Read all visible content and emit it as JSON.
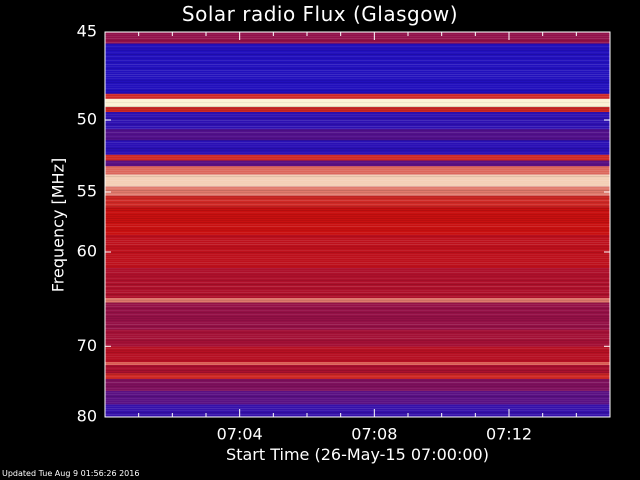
{
  "chart_data": {
    "type": "heatmap",
    "title": "Solar radio Flux (Glasgow)",
    "xlabel": "Start Time (26-May-15 07:00:00)",
    "ylabel": "Frequency [MHz]",
    "x_tick_labels": [
      "07:04",
      "07:08",
      "07:12"
    ],
    "x_ticks_minutes": [
      4,
      8,
      12
    ],
    "xlim_minutes": [
      0,
      15
    ],
    "y_tick_labels": [
      "45",
      "50",
      "55",
      "60",
      "70",
      "80"
    ],
    "y_ticks_mhz": [
      45,
      50,
      55,
      60,
      70,
      80
    ],
    "ylim_mhz": [
      45,
      80
    ],
    "y_scale": "reciprocal",
    "colormap": "blue-red-yellow-white",
    "colors": {
      "background": "#000000",
      "axes": "#ffffff",
      "low": "#1010d0",
      "mid": "#c81010",
      "high": "#ffffe0"
    },
    "bands": [
      {
        "from": 45.0,
        "to": 45.6,
        "level": 0.35
      },
      {
        "from": 45.6,
        "to": 48.4,
        "level": 0.05
      },
      {
        "from": 48.4,
        "to": 48.7,
        "level": 0.55
      },
      {
        "from": 48.7,
        "to": 49.2,
        "level": 0.97
      },
      {
        "from": 49.2,
        "to": 49.5,
        "level": 0.55
      },
      {
        "from": 49.5,
        "to": 50.6,
        "level": 0.08
      },
      {
        "from": 50.6,
        "to": 51.3,
        "level": 0.18
      },
      {
        "from": 51.3,
        "to": 52.3,
        "level": 0.07
      },
      {
        "from": 52.3,
        "to": 52.7,
        "level": 0.55
      },
      {
        "from": 52.7,
        "to": 53.1,
        "level": 0.2
      },
      {
        "from": 53.1,
        "to": 53.7,
        "level": 0.68
      },
      {
        "from": 53.7,
        "to": 54.6,
        "level": 0.9
      },
      {
        "from": 54.6,
        "to": 55.3,
        "level": 0.72
      },
      {
        "from": 55.3,
        "to": 56.2,
        "level": 0.55
      },
      {
        "from": 56.2,
        "to": 58.5,
        "level": 0.5
      },
      {
        "from": 58.5,
        "to": 61.5,
        "level": 0.47
      },
      {
        "from": 61.5,
        "to": 64.5,
        "level": 0.43
      },
      {
        "from": 64.5,
        "to": 65.0,
        "level": 0.72
      },
      {
        "from": 65.0,
        "to": 68.0,
        "level": 0.36
      },
      {
        "from": 68.0,
        "to": 70.0,
        "level": 0.4
      },
      {
        "from": 70.0,
        "to": 72.0,
        "level": 0.45
      },
      {
        "from": 72.0,
        "to": 72.4,
        "level": 0.66
      },
      {
        "from": 72.4,
        "to": 73.5,
        "level": 0.42
      },
      {
        "from": 73.5,
        "to": 74.3,
        "level": 0.55
      },
      {
        "from": 74.3,
        "to": 76.0,
        "level": 0.3
      },
      {
        "from": 76.0,
        "to": 78.0,
        "level": 0.2
      },
      {
        "from": 78.0,
        "to": 80.0,
        "level": 0.1
      }
    ]
  },
  "footer": "Updated Tue Aug  9 01:56:26 2016"
}
